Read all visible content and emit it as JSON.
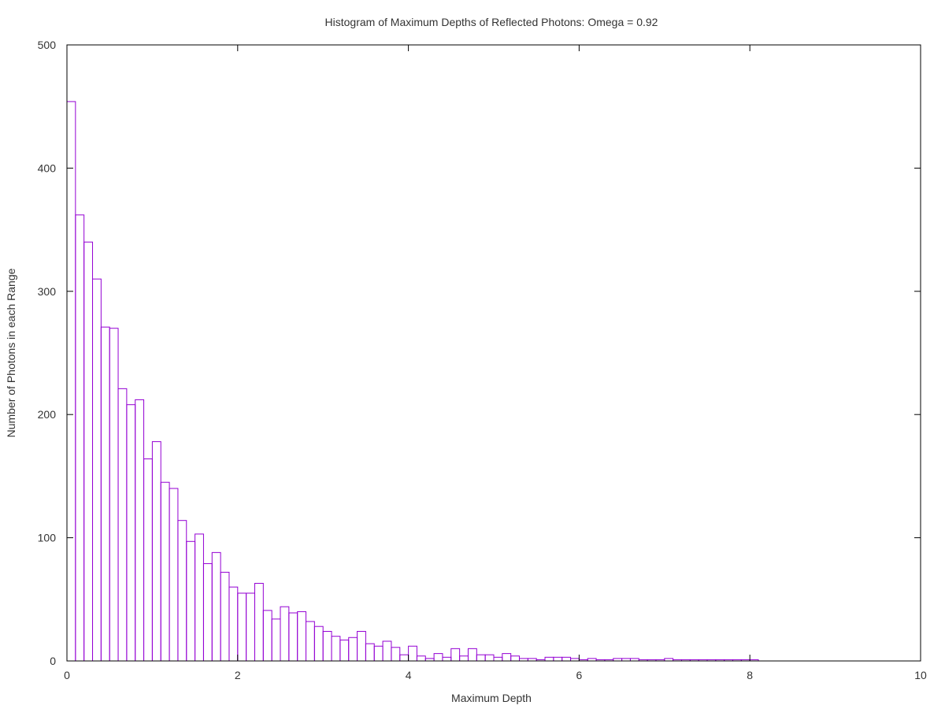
{
  "chart_data": {
    "type": "bar",
    "title": "Histogram of Maximum Depths of Reflected Photons: Omega = 0.92",
    "xlabel": "Maximum Depth",
    "ylabel": "Number of Photons in each Range",
    "xlim": [
      0,
      10
    ],
    "ylim": [
      0,
      500
    ],
    "xticks": [
      "0",
      "2",
      "4",
      "6",
      "8",
      "10"
    ],
    "yticks": [
      "0",
      "100",
      "200",
      "300",
      "400",
      "500"
    ],
    "bin_width": 0.1,
    "grid": false,
    "legend": "none",
    "bar_color": "#9400d3",
    "series": [
      {
        "bin_start": [
          0,
          0.1,
          0.2,
          0.3,
          0.4,
          0.5,
          0.6,
          0.7,
          0.8,
          0.9,
          1.0,
          1.1,
          1.2,
          1.3,
          1.4,
          1.5,
          1.6,
          1.7,
          1.8,
          1.9,
          2.0,
          2.1,
          2.2,
          2.3,
          2.4,
          2.5,
          2.6,
          2.7,
          2.8,
          2.9,
          3.0,
          3.1,
          3.2,
          3.3,
          3.4,
          3.5,
          3.6,
          3.7,
          3.8,
          3.9,
          4.0,
          4.1,
          4.2,
          4.3,
          4.4,
          4.5,
          4.6,
          4.7,
          4.8,
          4.9,
          5.0,
          5.1,
          5.2,
          5.3,
          5.4,
          5.5,
          5.6,
          5.7,
          5.8,
          5.9,
          6.0,
          6.1,
          6.2,
          6.3,
          6.4,
          6.5,
          6.6,
          6.7,
          6.8,
          6.9,
          7.0,
          7.1,
          7.2,
          7.3,
          7.4,
          7.5,
          7.6,
          7.7,
          7.8,
          7.9,
          8.0
        ],
        "values": [
          454,
          362,
          340,
          310,
          271,
          270,
          221,
          208,
          212,
          164,
          178,
          145,
          140,
          114,
          97,
          103,
          79,
          88,
          72,
          60,
          55,
          55,
          63,
          41,
          34,
          44,
          39,
          40,
          32,
          28,
          24,
          20,
          17,
          19,
          24,
          14,
          12,
          16,
          11,
          5,
          12,
          4,
          2,
          6,
          3,
          10,
          4,
          10,
          5,
          5,
          3,
          6,
          4,
          2,
          2,
          1,
          3,
          3,
          3,
          2,
          1,
          2,
          1,
          1,
          2,
          2,
          2,
          1,
          1,
          1,
          2,
          1,
          1,
          1,
          1,
          1,
          1,
          1,
          1,
          1,
          1
        ]
      }
    ]
  }
}
